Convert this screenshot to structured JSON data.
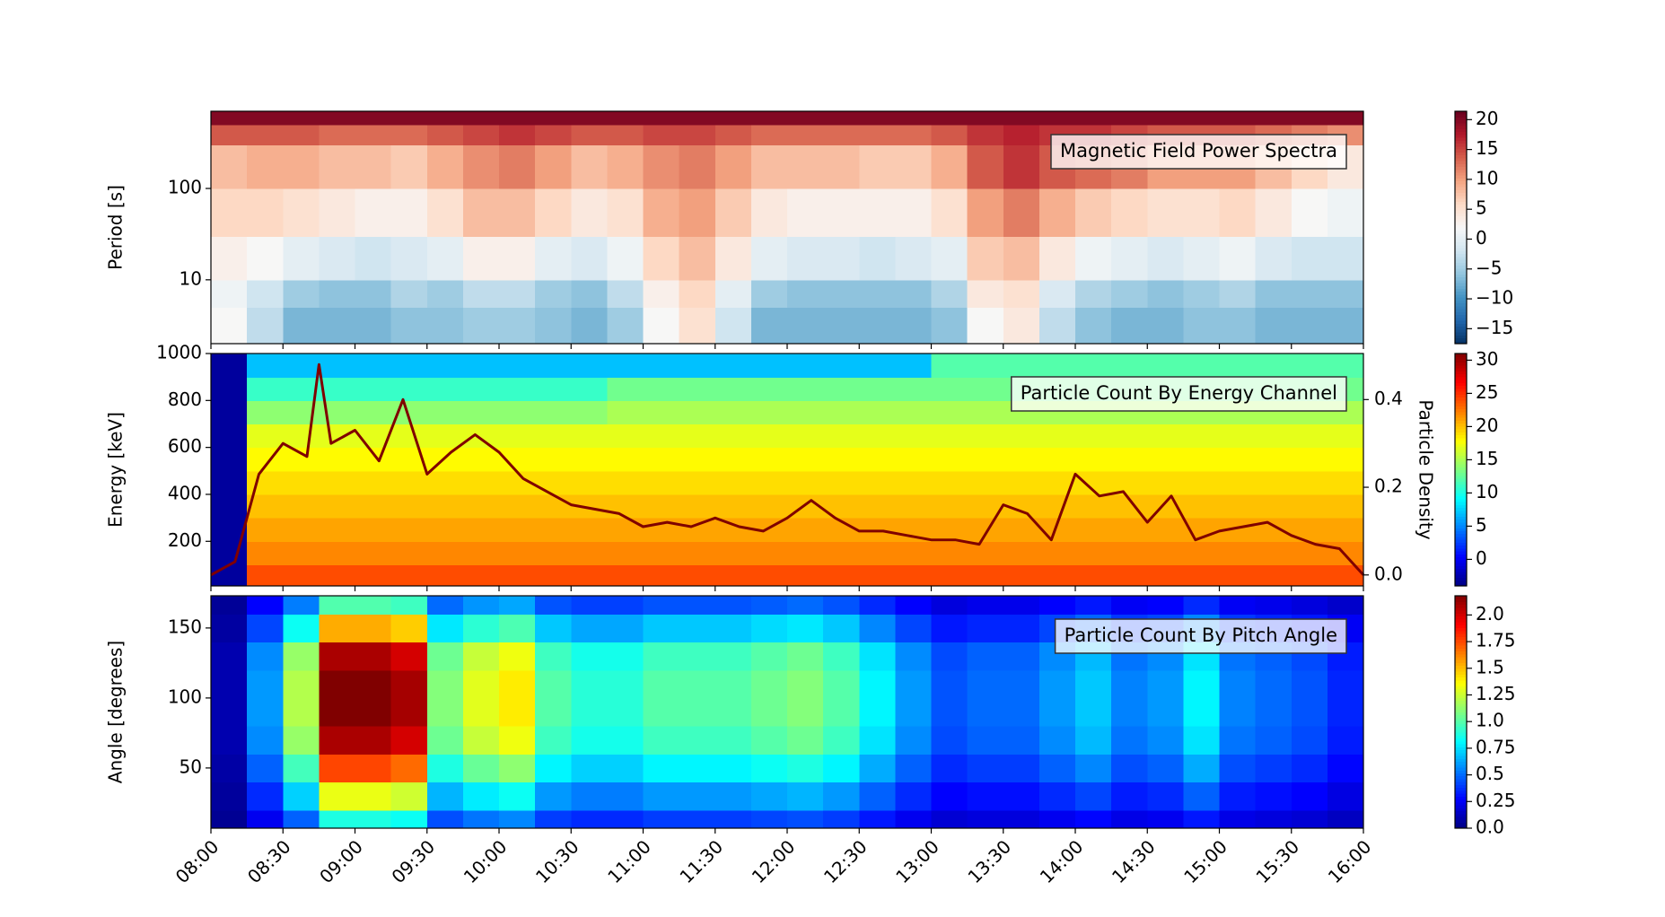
{
  "chart_data": [
    {
      "type": "heatmap",
      "annotation": "Magnetic Field Power Spectra",
      "ylabel": "Period [s]",
      "ylog": true,
      "ylim": [
        2,
        700
      ],
      "yticks": [
        10,
        100
      ],
      "colormap": "RdBu_r",
      "clim": [
        -17.5,
        21.4
      ],
      "cticks": [
        {
          "value": -15,
          "label": "−15"
        },
        {
          "value": -10,
          "label": "−10"
        },
        {
          "value": -5,
          "label": "−5"
        },
        0,
        5,
        10,
        15,
        20
      ],
      "x": [
        "08:00",
        "08:15",
        "08:30",
        "08:45",
        "09:00",
        "09:15",
        "09:30",
        "09:45",
        "10:00",
        "10:15",
        "10:30",
        "10:45",
        "11:00",
        "11:15",
        "11:30",
        "11:45",
        "12:00",
        "12:15",
        "12:30",
        "12:45",
        "13:00",
        "13:15",
        "13:30",
        "13:45",
        "14:00",
        "14:15",
        "14:30",
        "14:45",
        "15:00",
        "15:15",
        "15:30",
        "15:45",
        "16:00"
      ],
      "y": [
        2,
        5,
        10,
        30,
        100,
        300,
        500,
        700
      ],
      "z": [
        [
          2,
          -3,
          -7,
          -7,
          -7,
          -6,
          -6,
          -5,
          -5,
          -6,
          -7,
          -5,
          2,
          5,
          -2,
          -7,
          -7,
          -7,
          -7,
          -7,
          -6,
          2,
          4,
          -3,
          -6,
          -7,
          -7,
          -6,
          -6,
          -7,
          -7,
          -7
        ],
        [
          1,
          -2,
          -5,
          -6,
          -6,
          -4,
          -5,
          -3,
          -3,
          -5,
          -6,
          -3,
          3,
          6,
          0,
          -5,
          -6,
          -6,
          -6,
          -6,
          -4,
          4,
          5,
          -1,
          -4,
          -5,
          -6,
          -5,
          -4,
          -6,
          -6,
          -6
        ],
        [
          3,
          2,
          0,
          -1,
          -2,
          -1,
          0,
          3,
          3,
          0,
          -1,
          1,
          6,
          8,
          4,
          0,
          -1,
          -1,
          -2,
          -1,
          0,
          7,
          8,
          4,
          1,
          0,
          -1,
          0,
          1,
          -1,
          -2,
          -2
        ],
        [
          6,
          6,
          5,
          4,
          3,
          3,
          5,
          8,
          8,
          6,
          4,
          5,
          9,
          10,
          7,
          4,
          3,
          3,
          3,
          3,
          5,
          10,
          12,
          9,
          7,
          6,
          5,
          5,
          6,
          4,
          2,
          1
        ],
        [
          8,
          9,
          9,
          8,
          8,
          7,
          9,
          11,
          12,
          10,
          8,
          9,
          11,
          12,
          10,
          8,
          8,
          8,
          7,
          7,
          9,
          14,
          16,
          14,
          13,
          12,
          10,
          10,
          10,
          8,
          6,
          4
        ],
        [
          14,
          14,
          14,
          13,
          13,
          13,
          14,
          15,
          16,
          15,
          14,
          14,
          15,
          15,
          14,
          13,
          13,
          13,
          13,
          13,
          14,
          16,
          17,
          16,
          16,
          15,
          14,
          14,
          14,
          13,
          12,
          11
        ],
        [
          20,
          20,
          20,
          20,
          20,
          20,
          20,
          20,
          20,
          20,
          20,
          20,
          20,
          20,
          20,
          20,
          20,
          20,
          20,
          20,
          20,
          20,
          20,
          20,
          20,
          20,
          20,
          20,
          20,
          20,
          20,
          20
        ]
      ]
    },
    {
      "type": "heatmap",
      "annotation": "Particle Count By Energy Channel",
      "ylabel": "Energy [keV]",
      "ylim": [
        10,
        1000
      ],
      "yticks": [
        200,
        400,
        600,
        800,
        1000
      ],
      "colormap": "jet",
      "clim": [
        -4,
        31
      ],
      "cticks": [
        0,
        5,
        10,
        15,
        20,
        25,
        30
      ],
      "y2label": "Particle Density",
      "y2lim": [
        -0.025,
        0.505
      ],
      "y2ticks": [
        {
          "value": 0,
          "label": "0.0"
        },
        0.2,
        0.4
      ],
      "x": [
        "08:00",
        "08:15",
        "08:30",
        "08:45",
        "09:00",
        "09:15",
        "09:30",
        "09:45",
        "10:00",
        "10:15",
        "10:30",
        "10:45",
        "11:00",
        "11:15",
        "11:30",
        "11:45",
        "12:00",
        "12:15",
        "12:30",
        "12:45",
        "13:00",
        "13:15",
        "13:30",
        "13:45",
        "14:00",
        "14:15",
        "14:30",
        "14:45",
        "15:00",
        "15:15",
        "15:30",
        "15:45",
        "16:00"
      ],
      "y": [
        10,
        100,
        200,
        300,
        400,
        500,
        600,
        700,
        800,
        900,
        1000
      ],
      "z": [
        [
          -3,
          24,
          24,
          24,
          24,
          24,
          24,
          24,
          24,
          24,
          24,
          24,
          24,
          24,
          24,
          24,
          24,
          24,
          24,
          24,
          24,
          24,
          24,
          24,
          24,
          24,
          24,
          24,
          24,
          24,
          24,
          24
        ],
        [
          -3,
          22,
          22,
          22,
          22,
          22,
          22,
          22,
          22,
          22,
          22,
          22,
          22,
          22,
          22,
          22,
          22,
          22,
          22,
          22,
          22,
          22,
          22,
          22,
          22,
          22,
          22,
          22,
          22,
          22,
          22,
          22
        ],
        [
          -3,
          21,
          21,
          21,
          21,
          21,
          21,
          21,
          21,
          21,
          21,
          21,
          21,
          21,
          21,
          21,
          21,
          21,
          21,
          21,
          21,
          21,
          21,
          21,
          21,
          21,
          21,
          21,
          21,
          21,
          21,
          21
        ],
        [
          -3,
          20,
          20,
          20,
          20,
          20,
          20,
          20,
          20,
          20,
          20,
          20,
          20,
          20,
          20,
          20,
          20,
          20,
          20,
          20,
          20,
          20,
          20,
          20,
          20,
          20,
          20,
          20,
          20,
          20,
          20,
          20
        ],
        [
          -3,
          19,
          19,
          19,
          19,
          19,
          19,
          19,
          19,
          19,
          19,
          19,
          19,
          19,
          19,
          19,
          19,
          19,
          19,
          19,
          19,
          19,
          19,
          19,
          19,
          19,
          19,
          19,
          19,
          19,
          19,
          19
        ],
        [
          -3,
          18,
          18,
          18,
          18,
          18,
          18,
          18,
          18,
          18,
          18,
          18,
          18,
          18,
          18,
          18,
          18,
          18,
          18,
          18,
          18,
          18,
          18,
          18,
          18,
          18,
          18,
          18,
          18,
          18,
          18,
          18
        ],
        [
          -3,
          17,
          17,
          17,
          17,
          17,
          17,
          17,
          17,
          17,
          17,
          17,
          17,
          17,
          17,
          17,
          17,
          17,
          17,
          17,
          17,
          17,
          17,
          17,
          17,
          17,
          17,
          17,
          17,
          17,
          17,
          17
        ],
        [
          -3,
          14,
          14,
          14,
          14,
          14,
          14,
          14,
          14,
          14,
          14,
          15,
          15,
          15,
          15,
          15,
          15,
          15,
          15,
          15,
          15,
          15,
          15,
          15,
          15,
          15,
          15,
          15,
          15,
          15,
          15,
          15
        ],
        [
          -3,
          11,
          11,
          11,
          11,
          11,
          11,
          11,
          11,
          11,
          11,
          13,
          13,
          13,
          13,
          13,
          13,
          13,
          13,
          13,
          13,
          13,
          13,
          13,
          13,
          13,
          13,
          13,
          13,
          13,
          13,
          13
        ],
        [
          -3,
          7,
          7,
          7,
          7,
          7,
          7,
          7,
          7,
          7,
          7,
          7,
          7,
          7,
          7,
          7,
          7,
          7,
          7,
          7,
          12,
          12,
          12,
          12,
          12,
          12,
          12,
          12,
          12,
          12,
          12,
          12
        ]
      ],
      "series": [
        {
          "color": "#7f0000",
          "axis": "y2",
          "x": [
            "08:00",
            "08:10",
            "08:20",
            "08:30",
            "08:40",
            "08:45",
            "08:50",
            "09:00",
            "09:10",
            "09:20",
            "09:30",
            "09:40",
            "09:50",
            "10:00",
            "10:10",
            "10:20",
            "10:30",
            "10:40",
            "10:50",
            "11:00",
            "11:10",
            "11:20",
            "11:30",
            "11:40",
            "11:50",
            "12:00",
            "12:10",
            "12:20",
            "12:30",
            "12:40",
            "12:50",
            "13:00",
            "13:10",
            "13:20",
            "13:30",
            "13:40",
            "13:50",
            "14:00",
            "14:10",
            "14:20",
            "14:30",
            "14:40",
            "14:50",
            "15:00",
            "15:10",
            "15:20",
            "15:30",
            "15:40",
            "15:50",
            "16:00"
          ],
          "values": [
            0,
            0.03,
            0.23,
            0.3,
            0.27,
            0.48,
            0.3,
            0.33,
            0.26,
            0.4,
            0.23,
            0.28,
            0.32,
            0.28,
            0.22,
            0.19,
            0.16,
            0.15,
            0.14,
            0.11,
            0.12,
            0.11,
            0.13,
            0.11,
            0.1,
            0.13,
            0.17,
            0.13,
            0.1,
            0.1,
            0.09,
            0.08,
            0.08,
            0.07,
            0.16,
            0.14,
            0.08,
            0.23,
            0.18,
            0.19,
            0.12,
            0.18,
            0.08,
            0.1,
            0.11,
            0.12,
            0.09,
            0.07,
            0.06,
            0
          ]
        }
      ]
    },
    {
      "type": "heatmap",
      "annotation": "Particle Count By Pitch Angle",
      "ylabel": "Angle [degrees]",
      "ylim": [
        7,
        173
      ],
      "yticks": [
        50,
        100,
        150
      ],
      "colormap": "jet",
      "clim": [
        0,
        2.18
      ],
      "cticks": [
        {
          "value": 0,
          "label": "0.0"
        },
        0.25,
        0.5,
        0.75,
        {
          "value": 1,
          "label": "1.0"
        },
        1.25,
        1.5,
        1.75,
        {
          "value": 2,
          "label": "2.0"
        }
      ],
      "xlim": [
        "08:00",
        "16:00"
      ],
      "xticks": [
        "08:00",
        "08:30",
        "09:00",
        "09:30",
        "10:00",
        "10:30",
        "11:00",
        "11:30",
        "12:00",
        "12:30",
        "13:00",
        "13:30",
        "14:00",
        "14:30",
        "15:00",
        "15:30",
        "16:00"
      ],
      "x": [
        "08:00",
        "08:15",
        "08:30",
        "08:45",
        "09:00",
        "09:15",
        "09:30",
        "09:45",
        "10:00",
        "10:15",
        "10:30",
        "10:45",
        "11:00",
        "11:15",
        "11:30",
        "11:45",
        "12:00",
        "12:15",
        "12:30",
        "12:45",
        "13:00",
        "13:15",
        "13:30",
        "13:45",
        "14:00",
        "14:15",
        "14:30",
        "14:45",
        "15:00",
        "15:15",
        "15:30",
        "15:45",
        "16:00"
      ],
      "y": [
        7,
        20,
        40,
        60,
        80,
        100,
        120,
        140,
        160,
        173
      ],
      "z": [
        [
          0.04,
          0.24,
          0.48,
          0.88,
          0.88,
          0.84,
          0.44,
          0.52,
          0.56,
          0.4,
          0.36,
          0.36,
          0.4,
          0.4,
          0.4,
          0.42,
          0.44,
          0.4,
          0.32,
          0.24,
          0.18,
          0.2,
          0.2,
          0.24,
          0.28,
          0.22,
          0.24,
          0.32,
          0.22,
          0.2,
          0.18,
          0.14
        ],
        [
          0.06,
          0.36,
          0.72,
          1.32,
          1.32,
          1.26,
          0.66,
          0.78,
          0.84,
          0.6,
          0.54,
          0.54,
          0.6,
          0.6,
          0.6,
          0.63,
          0.66,
          0.6,
          0.48,
          0.36,
          0.27,
          0.3,
          0.3,
          0.36,
          0.42,
          0.33,
          0.36,
          0.48,
          0.33,
          0.3,
          0.27,
          0.21
        ],
        [
          0.08,
          0.48,
          0.96,
          1.76,
          1.76,
          1.68,
          0.88,
          1.04,
          1.12,
          0.8,
          0.72,
          0.72,
          0.8,
          0.8,
          0.8,
          0.84,
          0.88,
          0.8,
          0.64,
          0.48,
          0.36,
          0.4,
          0.4,
          0.48,
          0.56,
          0.44,
          0.48,
          0.64,
          0.44,
          0.4,
          0.36,
          0.28
        ],
        [
          0.1,
          0.57,
          1.14,
          2.09,
          2.09,
          2.0,
          1.05,
          1.24,
          1.33,
          0.95,
          0.86,
          0.86,
          0.95,
          0.95,
          0.95,
          1.0,
          1.05,
          0.95,
          0.76,
          0.57,
          0.43,
          0.48,
          0.48,
          0.57,
          0.67,
          0.52,
          0.57,
          0.76,
          0.52,
          0.48,
          0.43,
          0.33
        ],
        [
          0.1,
          0.6,
          1.2,
          2.2,
          2.2,
          2.1,
          1.1,
          1.3,
          1.4,
          1,
          0.9,
          0.9,
          1,
          1,
          1,
          1.05,
          1.1,
          1,
          0.8,
          0.6,
          0.45,
          0.5,
          0.5,
          0.6,
          0.7,
          0.55,
          0.6,
          0.8,
          0.55,
          0.5,
          0.45,
          0.35
        ],
        [
          0.1,
          0.6,
          1.2,
          2.2,
          2.2,
          2.1,
          1.1,
          1.3,
          1.4,
          1,
          0.9,
          0.9,
          1,
          1,
          1,
          1.05,
          1.1,
          1,
          0.8,
          0.6,
          0.45,
          0.5,
          0.5,
          0.6,
          0.7,
          0.55,
          0.6,
          0.8,
          0.55,
          0.5,
          0.45,
          0.35
        ],
        [
          0.1,
          0.57,
          1.14,
          2.09,
          2.09,
          2.0,
          1.05,
          1.24,
          1.33,
          0.95,
          0.86,
          0.86,
          0.95,
          0.95,
          0.95,
          1.0,
          1.05,
          0.95,
          0.76,
          0.57,
          0.43,
          0.48,
          0.48,
          0.57,
          0.67,
          0.52,
          0.57,
          0.76,
          0.52,
          0.48,
          0.43,
          0.33
        ],
        [
          0.07,
          0.42,
          0.84,
          1.54,
          1.54,
          1.47,
          0.77,
          0.91,
          0.98,
          0.7,
          0.63,
          0.63,
          0.7,
          0.7,
          0.7,
          0.74,
          0.77,
          0.7,
          0.56,
          0.42,
          0.32,
          0.35,
          0.35,
          0.42,
          0.49,
          0.39,
          0.42,
          0.56,
          0.39,
          0.35,
          0.32,
          0.25
        ],
        [
          0.05,
          0.27,
          0.54,
          0.99,
          0.99,
          0.95,
          0.5,
          0.59,
          0.63,
          0.45,
          0.41,
          0.41,
          0.45,
          0.45,
          0.45,
          0.47,
          0.5,
          0.45,
          0.36,
          0.27,
          0.2,
          0.23,
          0.23,
          0.27,
          0.32,
          0.25,
          0.27,
          0.36,
          0.25,
          0.23,
          0.2,
          0.16
        ]
      ]
    }
  ]
}
